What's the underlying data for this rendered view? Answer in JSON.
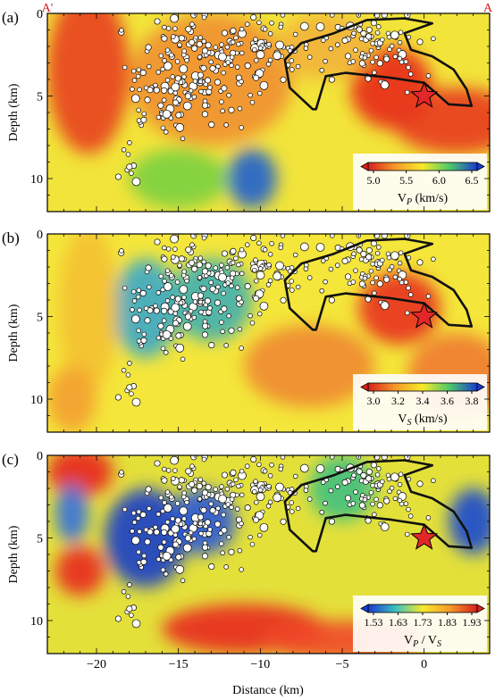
{
  "figure": {
    "profile_ends": [
      "A'",
      "A"
    ],
    "x_axis_label": "Distance (km)",
    "y_axis_label": "Depth (km)"
  },
  "chart_data": [
    {
      "type": "heatmap",
      "panel": "(a)",
      "quantity": "Vp",
      "colorbar_label": "V",
      "colorbar_sub": "P",
      "colorbar_unit": " (km/s)",
      "colorbar_ticks": [
        "5.0",
        "5.5",
        "6.0",
        "6.5"
      ],
      "xlim": [
        -23,
        4
      ],
      "ylim": [
        12,
        0
      ],
      "xticks": [
        -20,
        -15,
        -10,
        -5,
        0
      ],
      "yticks": [
        0,
        5,
        10
      ],
      "mainshock": {
        "x": 0,
        "y": 5
      },
      "anomalies": [
        {
          "x": -20.5,
          "y": 3.5,
          "rx": 2.5,
          "ry": 5,
          "color": "#e8401c"
        },
        {
          "x": -13,
          "y": 4,
          "rx": 5,
          "ry": 4,
          "color": "#f09030"
        },
        {
          "x": -2,
          "y": 4.5,
          "rx": 2.5,
          "ry": 2.5,
          "color": "#e82818"
        },
        {
          "x": 2,
          "y": 6.5,
          "rx": 4,
          "ry": 2,
          "color": "#e83a1c"
        },
        {
          "x": -10.5,
          "y": 10,
          "rx": 1.5,
          "ry": 1.8,
          "color": "#2060d0"
        },
        {
          "x": -15,
          "y": 10,
          "rx": 3,
          "ry": 1.8,
          "color": "#7ad040"
        },
        {
          "x": -6,
          "y": 2,
          "rx": 3,
          "ry": 2,
          "color": "#f2b43a"
        }
      ]
    },
    {
      "type": "heatmap",
      "panel": "(b)",
      "quantity": "Vs",
      "colorbar_label": "V",
      "colorbar_sub": "S",
      "colorbar_unit": " (km/s)",
      "colorbar_ticks": [
        "3.0",
        "3.2",
        "3.4",
        "3.6",
        "3.8"
      ],
      "xlim": [
        -23,
        4
      ],
      "ylim": [
        12,
        0
      ],
      "xticks": [
        -20,
        -15,
        -10,
        -5,
        0
      ],
      "yticks": [
        0,
        5,
        10
      ],
      "mainshock": {
        "x": 0,
        "y": 5
      },
      "anomalies": [
        {
          "x": -17,
          "y": 4.5,
          "rx": 2,
          "ry": 3,
          "color": "#3aa8c8"
        },
        {
          "x": -13,
          "y": 4,
          "rx": 2.5,
          "ry": 2.5,
          "color": "#40b0b0"
        },
        {
          "x": -20.5,
          "y": 4.5,
          "rx": 1.8,
          "ry": 5,
          "color": "#f4c030"
        },
        {
          "x": -7,
          "y": 8,
          "rx": 4,
          "ry": 2.5,
          "color": "#f08a30"
        },
        {
          "x": -1.5,
          "y": 4.5,
          "rx": 2.5,
          "ry": 2.2,
          "color": "#e83020"
        },
        {
          "x": 2,
          "y": 8.5,
          "rx": 3,
          "ry": 2.5,
          "color": "#f07a30"
        },
        {
          "x": -21.5,
          "y": 10,
          "rx": 1.5,
          "ry": 2,
          "color": "#f4a030"
        }
      ]
    },
    {
      "type": "heatmap",
      "panel": "(c)",
      "quantity": "Vp/Vs",
      "colorbar_label": "V",
      "colorbar_sub": "P",
      "colorbar_sep": " / V",
      "colorbar_sub2": "S",
      "colorbar_ticks": [
        "1.53",
        "1.63",
        "1.73",
        "1.83",
        "1.93"
      ],
      "xlim": [
        -23,
        4
      ],
      "ylim": [
        12,
        0
      ],
      "xticks": [
        -20,
        -15,
        -10,
        -5,
        0
      ],
      "yticks": [
        0,
        5,
        10
      ],
      "mainshock": {
        "x": 0,
        "y": 5
      },
      "anomalies": [
        {
          "x": -17,
          "y": 5,
          "rx": 2.5,
          "ry": 3,
          "color": "#1a3ec8"
        },
        {
          "x": -13.5,
          "y": 4,
          "rx": 2,
          "ry": 2,
          "color": "#2a58d8"
        },
        {
          "x": -21,
          "y": 1,
          "rx": 2,
          "ry": 1.5,
          "color": "#e8241c"
        },
        {
          "x": -21,
          "y": 7,
          "rx": 1.5,
          "ry": 1.5,
          "color": "#e8281c"
        },
        {
          "x": -11,
          "y": 10.5,
          "rx": 5,
          "ry": 1.5,
          "color": "#e82a1c"
        },
        {
          "x": -5,
          "y": 11.2,
          "rx": 5,
          "ry": 1.2,
          "color": "#f04828"
        },
        {
          "x": 3,
          "y": 4,
          "rx": 1.5,
          "ry": 2,
          "color": "#1a48d0"
        },
        {
          "x": -5,
          "y": 2,
          "rx": 2,
          "ry": 2,
          "color": "#40c080"
        },
        {
          "x": -21.5,
          "y": 3.5,
          "rx": 1,
          "ry": 1.8,
          "color": "#3070e0"
        }
      ]
    }
  ]
}
